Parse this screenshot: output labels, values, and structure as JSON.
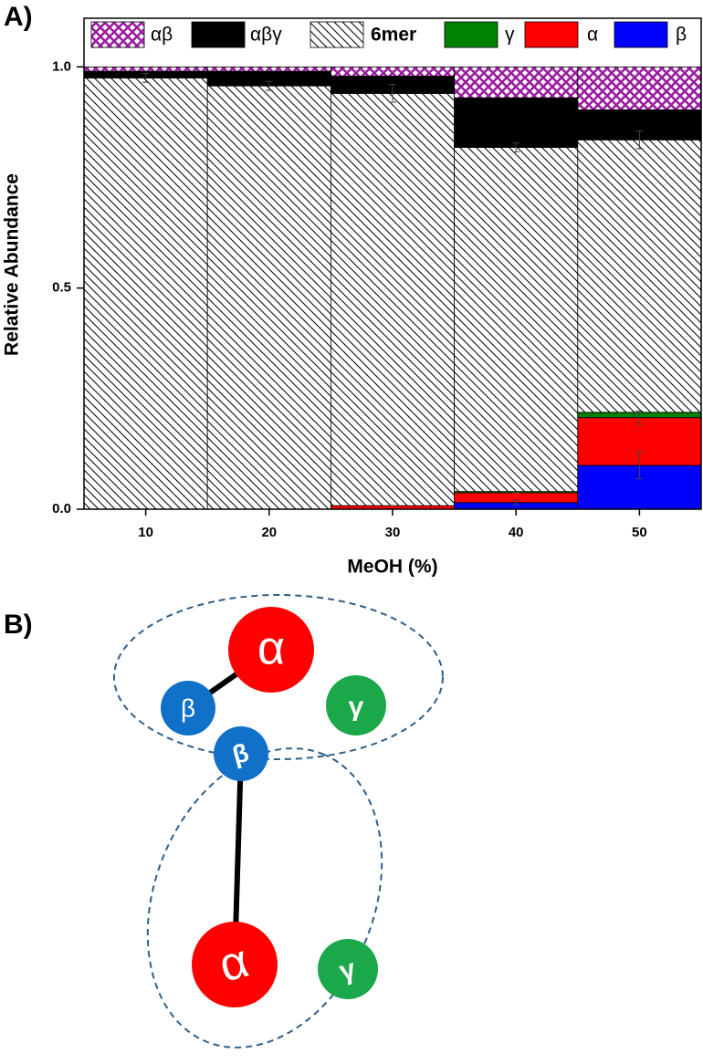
{
  "chart_data": {
    "type": "stacked_bar",
    "panel_label": "A)",
    "xlabel": "MeOH (%)",
    "ylabel": "Relative Abundance",
    "categories": [
      "10",
      "20",
      "30",
      "40",
      "50"
    ],
    "ylim": [
      0,
      1.11
    ],
    "yticks": [
      {
        "value": 0,
        "label": "0.0"
      },
      {
        "value": 0.5,
        "label": "0.5"
      },
      {
        "value": 1,
        "label": "1.0"
      }
    ],
    "series": [
      {
        "name": "β",
        "color": "#0000ff",
        "hatch": "none",
        "values": [
          0,
          0,
          0,
          0.015,
          0.099
        ],
        "errors": [
          0,
          0,
          0,
          0.005,
          0.03
        ]
      },
      {
        "name": "α",
        "color": "#ff0000",
        "hatch": "none",
        "values": [
          0,
          0,
          0.008,
          0.022,
          0.108
        ],
        "errors": [
          0,
          0,
          0,
          0,
          0.015
        ]
      },
      {
        "name": "γ",
        "color": "#008000",
        "hatch": "none",
        "values": [
          0,
          0,
          0,
          0.003,
          0.012
        ]
      },
      {
        "name": "6mer",
        "color": "#000000",
        "hatch": "diagonal",
        "values": [
          0.975,
          0.957,
          0.932,
          0.778,
          0.616
        ],
        "errors": [
          0.01,
          0.01,
          0.02,
          0.01,
          0.02
        ]
      },
      {
        "name": "αβγ",
        "color": "#000000",
        "hatch": "none",
        "values": [
          0.015,
          0.033,
          0.039,
          0.112,
          0.068
        ]
      },
      {
        "name": "αβ",
        "color": "#9b1fa0",
        "hatch": "cross",
        "values": [
          0.01,
          0.01,
          0.021,
          0.07,
          0.097
        ]
      }
    ]
  },
  "diagram": {
    "panel_label": "B)",
    "groups": [
      {
        "nodes": [
          "α",
          "β",
          "γ"
        ]
      },
      {
        "nodes": [
          "α",
          "β",
          "γ"
        ]
      }
    ]
  }
}
